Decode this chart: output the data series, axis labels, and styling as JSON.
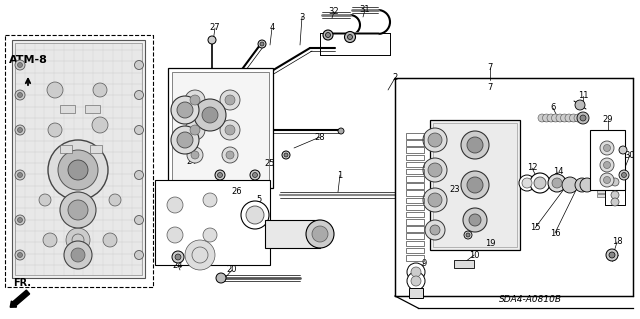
{
  "bg_color": "#ffffff",
  "diagram_code": "SDA4-A0810B",
  "atm_label": "ATM-8",
  "fr_label": "FR.",
  "fig_width": 6.4,
  "fig_height": 3.19,
  "dpi": 100,
  "label_fs": 6.0,
  "bold_fs": 7.5
}
